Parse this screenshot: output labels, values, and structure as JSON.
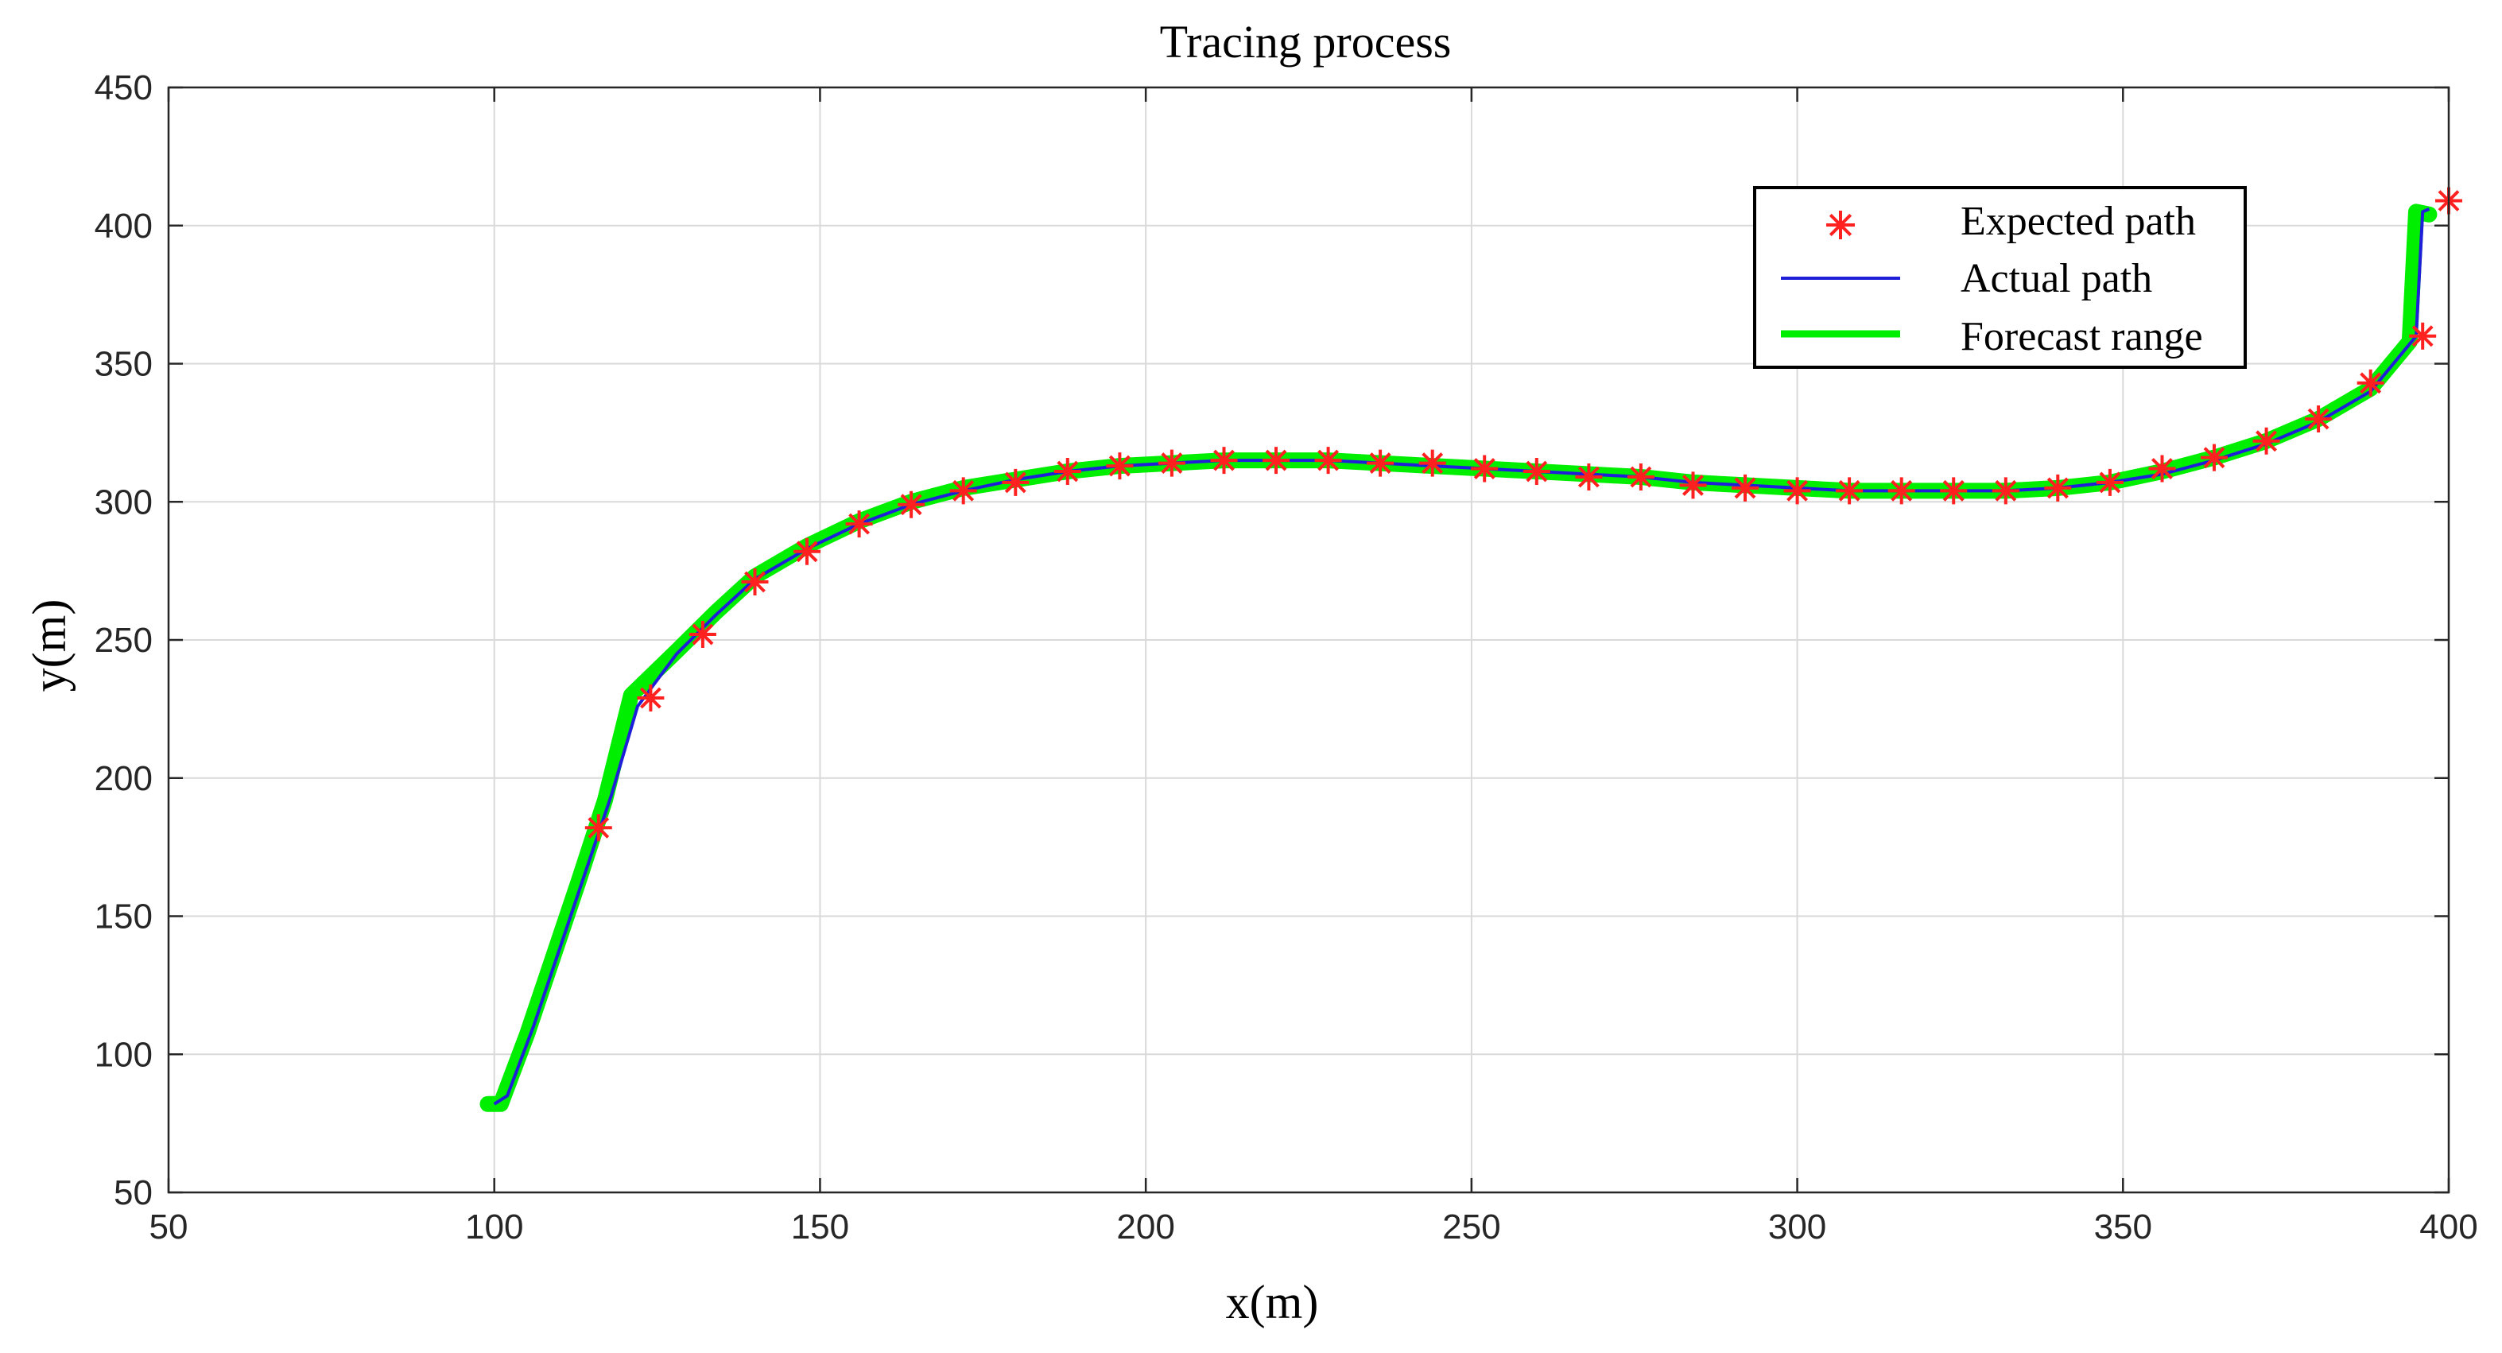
{
  "chart_data": {
    "type": "line",
    "title": "Tracing process",
    "xlabel": "x(m)",
    "ylabel": "y(m)",
    "xlim": [
      50,
      400
    ],
    "ylim": [
      50,
      450
    ],
    "xticks": [
      50,
      100,
      150,
      200,
      250,
      300,
      350,
      400
    ],
    "yticks": [
      50,
      100,
      150,
      200,
      250,
      300,
      350,
      400,
      450
    ],
    "grid": true,
    "legend_position": "top-right",
    "colors": {
      "expected": "#ff2020",
      "actual": "#1f1fd9",
      "forecast": "#00ee00",
      "grid": "#d9d9d9",
      "axis": "#262626"
    },
    "series": [
      {
        "name": "Expected path",
        "style": "markers",
        "marker": "asterisk",
        "points": [
          [
            116,
            182
          ],
          [
            124,
            229
          ],
          [
            132,
            252
          ],
          [
            140,
            271
          ],
          [
            148,
            282
          ],
          [
            156,
            292
          ],
          [
            164,
            299
          ],
          [
            172,
            304
          ],
          [
            180,
            307
          ],
          [
            188,
            311
          ],
          [
            196,
            313
          ],
          [
            204,
            314
          ],
          [
            212,
            315
          ],
          [
            220,
            315
          ],
          [
            228,
            315
          ],
          [
            236,
            314
          ],
          [
            244,
            314
          ],
          [
            252,
            312
          ],
          [
            260,
            311
          ],
          [
            268,
            309
          ],
          [
            276,
            309
          ],
          [
            284,
            306
          ],
          [
            292,
            305
          ],
          [
            300,
            304
          ],
          [
            308,
            304
          ],
          [
            316,
            304
          ],
          [
            324,
            304
          ],
          [
            332,
            304
          ],
          [
            340,
            305
          ],
          [
            348,
            307
          ],
          [
            356,
            312
          ],
          [
            364,
            316
          ],
          [
            372,
            322
          ],
          [
            380,
            330
          ],
          [
            388,
            343
          ],
          [
            396,
            360
          ],
          [
            400,
            409
          ]
        ]
      },
      {
        "name": "Actual path",
        "style": "line",
        "points": [
          [
            100,
            82
          ],
          [
            102,
            85
          ],
          [
            106,
            110
          ],
          [
            110,
            138
          ],
          [
            114,
            166
          ],
          [
            118,
            194
          ],
          [
            122,
            226
          ],
          [
            128,
            245
          ],
          [
            134,
            259
          ],
          [
            140,
            272
          ],
          [
            148,
            283
          ],
          [
            156,
            292
          ],
          [
            164,
            299
          ],
          [
            172,
            304
          ],
          [
            180,
            308
          ],
          [
            188,
            311
          ],
          [
            196,
            313
          ],
          [
            204,
            314
          ],
          [
            212,
            315
          ],
          [
            220,
            315
          ],
          [
            228,
            315
          ],
          [
            236,
            314
          ],
          [
            244,
            313
          ],
          [
            252,
            312
          ],
          [
            260,
            311
          ],
          [
            268,
            310
          ],
          [
            276,
            309
          ],
          [
            284,
            307
          ],
          [
            292,
            306
          ],
          [
            300,
            305
          ],
          [
            308,
            304
          ],
          [
            316,
            304
          ],
          [
            324,
            304
          ],
          [
            332,
            304
          ],
          [
            340,
            305
          ],
          [
            348,
            307
          ],
          [
            356,
            310
          ],
          [
            364,
            315
          ],
          [
            372,
            321
          ],
          [
            380,
            329
          ],
          [
            388,
            340
          ],
          [
            395,
            360
          ],
          [
            396,
            405
          ],
          [
            397,
            406
          ]
        ]
      },
      {
        "name": "Forecast range",
        "style": "line",
        "points": [
          [
            99,
            82
          ],
          [
            101,
            82
          ],
          [
            105,
            107
          ],
          [
            109,
            135
          ],
          [
            113,
            163
          ],
          [
            117,
            192
          ],
          [
            121,
            230
          ],
          [
            128,
            246
          ],
          [
            134,
            260
          ],
          [
            140,
            273
          ],
          [
            148,
            284
          ],
          [
            156,
            293
          ],
          [
            164,
            300
          ],
          [
            172,
            305
          ],
          [
            180,
            308
          ],
          [
            188,
            311
          ],
          [
            196,
            313
          ],
          [
            204,
            314
          ],
          [
            212,
            315
          ],
          [
            220,
            315
          ],
          [
            228,
            315
          ],
          [
            236,
            314
          ],
          [
            244,
            313
          ],
          [
            252,
            312
          ],
          [
            260,
            311
          ],
          [
            268,
            310
          ],
          [
            276,
            309
          ],
          [
            284,
            307
          ],
          [
            292,
            306
          ],
          [
            300,
            305
          ],
          [
            308,
            304
          ],
          [
            316,
            304
          ],
          [
            324,
            304
          ],
          [
            332,
            304
          ],
          [
            340,
            305
          ],
          [
            348,
            307
          ],
          [
            356,
            311
          ],
          [
            364,
            316
          ],
          [
            372,
            322
          ],
          [
            380,
            330
          ],
          [
            388,
            341
          ],
          [
            394,
            358
          ],
          [
            395,
            405
          ],
          [
            397,
            404
          ]
        ]
      }
    ]
  }
}
